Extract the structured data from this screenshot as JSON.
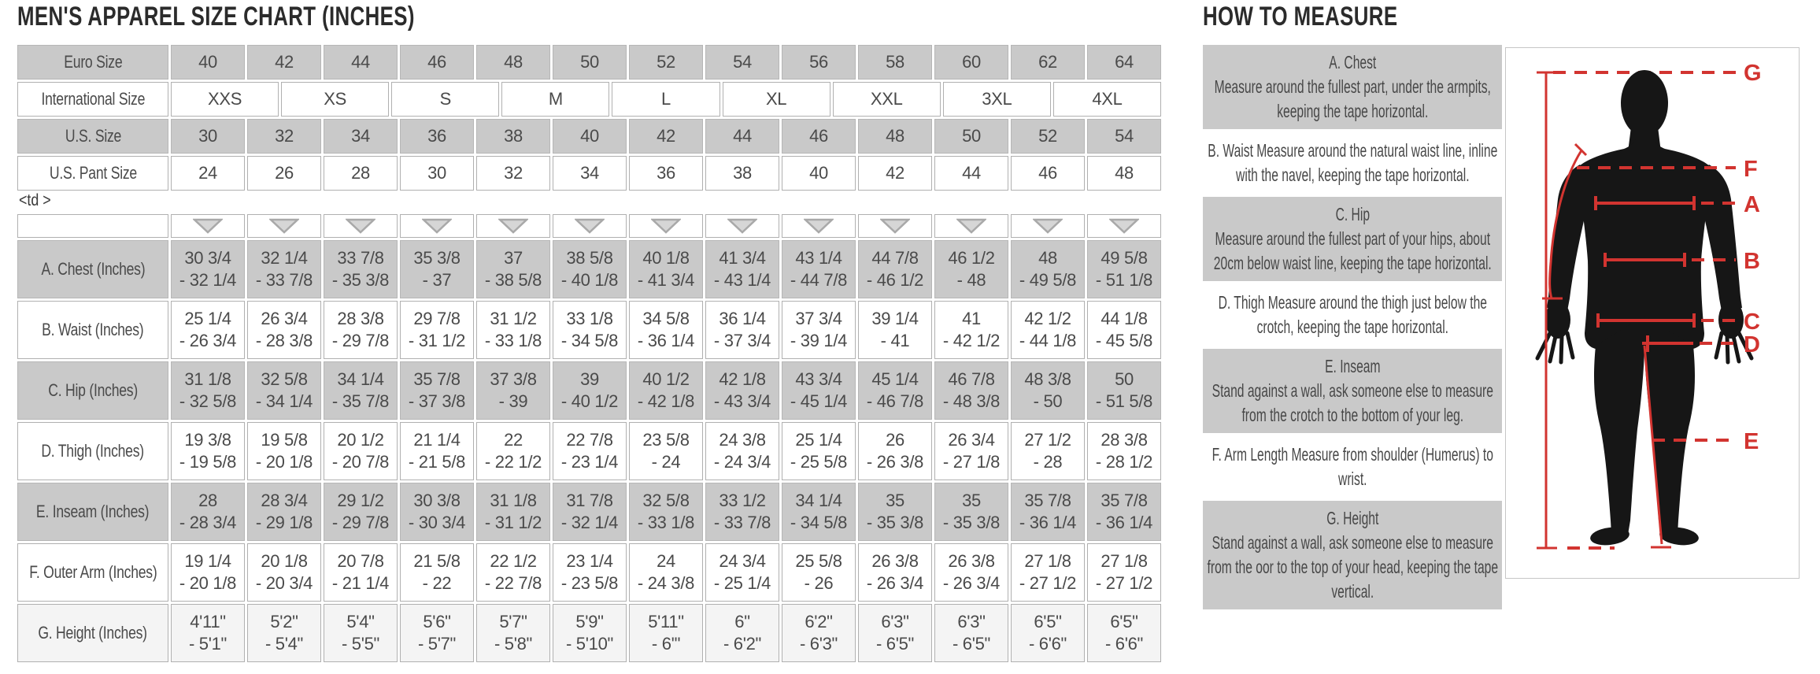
{
  "left": {
    "title": "MEN'S APPAREL SIZE CHART (INCHES)",
    "stray_text": "<td >",
    "size_table": {
      "rows": [
        {
          "label": "Euro Size",
          "shade": "gray",
          "cells": [
            "40",
            "42",
            "44",
            "46",
            "48",
            "50",
            "52",
            "54",
            "56",
            "58",
            "60",
            "62",
            "64"
          ]
        },
        {
          "label": "International Size",
          "shade": "white",
          "cells": [
            "XXS",
            "XS",
            "S",
            "M",
            "L",
            "XL",
            "XXL",
            "3XL",
            "4XL"
          ]
        },
        {
          "label": "U.S. Size",
          "shade": "gray",
          "cells": [
            "30",
            "32",
            "34",
            "36",
            "38",
            "40",
            "42",
            "44",
            "46",
            "48",
            "50",
            "52",
            "54"
          ]
        },
        {
          "label": "U.S. Pant Size",
          "shade": "white",
          "cells": [
            "24",
            "26",
            "28",
            "30",
            "32",
            "34",
            "36",
            "38",
            "40",
            "42",
            "44",
            "46",
            "48"
          ]
        }
      ]
    },
    "measure_table": {
      "triangle_count": 13,
      "rows": [
        {
          "label": "A. Chest (Inches)",
          "shade": "gray",
          "cells": [
            [
              "30 3/4",
              "- 32 1/4"
            ],
            [
              "32 1/4",
              "- 33 7/8"
            ],
            [
              "33 7/8",
              "- 35 3/8"
            ],
            [
              "35 3/8",
              "- 37"
            ],
            [
              "37",
              "- 38 5/8"
            ],
            [
              "38 5/8",
              "- 40 1/8"
            ],
            [
              "40 1/8",
              "- 41 3/4"
            ],
            [
              "41 3/4",
              "- 43 1/4"
            ],
            [
              "43 1/4",
              "- 44 7/8"
            ],
            [
              "44 7/8",
              "- 46 1/2"
            ],
            [
              "46 1/2",
              "- 48"
            ],
            [
              "48",
              "- 49 5/8"
            ],
            [
              "49 5/8",
              "- 51 1/8"
            ]
          ]
        },
        {
          "label": "B. Waist (Inches)",
          "shade": "white",
          "cells": [
            [
              "25 1/4",
              "- 26 3/4"
            ],
            [
              "26 3/4",
              "- 28 3/8"
            ],
            [
              "28 3/8",
              "- 29 7/8"
            ],
            [
              "29 7/8",
              "- 31 1/2"
            ],
            [
              "31 1/2",
              "- 33 1/8"
            ],
            [
              "33 1/8",
              "- 34 5/8"
            ],
            [
              "34 5/8",
              "- 36 1/4"
            ],
            [
              "36 1/4",
              "- 37 3/4"
            ],
            [
              "37 3/4",
              "- 39 1/4"
            ],
            [
              "39 1/4",
              "- 41"
            ],
            [
              "41",
              "- 42 1/2"
            ],
            [
              "42 1/2",
              "- 44 1/8"
            ],
            [
              "44 1/8",
              "- 45 5/8"
            ]
          ]
        },
        {
          "label": "C. Hip (Inches)",
          "shade": "gray",
          "cells": [
            [
              "31 1/8",
              "- 32 5/8"
            ],
            [
              "32 5/8",
              "- 34 1/4"
            ],
            [
              "34 1/4",
              "- 35 7/8"
            ],
            [
              "35 7/8",
              "- 37 3/8"
            ],
            [
              "37 3/8",
              "- 39"
            ],
            [
              "39",
              "- 40 1/2"
            ],
            [
              "40 1/2",
              "- 42 1/8"
            ],
            [
              "42 1/8",
              "- 43 3/4"
            ],
            [
              "43 3/4",
              "- 45 1/4"
            ],
            [
              "45 1/4",
              "- 46 7/8"
            ],
            [
              "46 7/8",
              "- 48 3/8"
            ],
            [
              "48 3/8",
              "- 50"
            ],
            [
              "50",
              "- 51 5/8"
            ]
          ]
        },
        {
          "label": "D. Thigh (Inches)",
          "shade": "white",
          "cells": [
            [
              "19 3/8",
              "- 19 5/8"
            ],
            [
              "19 5/8",
              "- 20 1/8"
            ],
            [
              "20 1/2",
              "- 20 7/8"
            ],
            [
              "21 1/4",
              "- 21 5/8"
            ],
            [
              "22",
              "- 22 1/2"
            ],
            [
              "22 7/8",
              "- 23 1/4"
            ],
            [
              "23 5/8",
              "- 24"
            ],
            [
              "24 3/8",
              "- 24 3/4"
            ],
            [
              "25 1/4",
              "- 25 5/8"
            ],
            [
              "26",
              "- 26 3/8"
            ],
            [
              "26 3/4",
              "- 27 1/8"
            ],
            [
              "27 1/2",
              "- 28"
            ],
            [
              "28 3/8",
              "- 28 1/2"
            ]
          ]
        },
        {
          "label": "E. Inseam (Inches)",
          "shade": "gray",
          "cells": [
            [
              "28",
              "- 28 3/4"
            ],
            [
              "28 3/4",
              "- 29 1/8"
            ],
            [
              "29 1/2",
              "- 29 7/8"
            ],
            [
              "30 3/8",
              "- 30 3/4"
            ],
            [
              "31 1/8",
              "- 31 1/2"
            ],
            [
              "31 7/8",
              "- 32 1/4"
            ],
            [
              "32 5/8",
              "- 33 1/8"
            ],
            [
              "33 1/2",
              "- 33 7/8"
            ],
            [
              "34 1/4",
              "- 34 5/8"
            ],
            [
              "35",
              "- 35 3/8"
            ],
            [
              "35",
              "- 35 3/8"
            ],
            [
              "35 7/8",
              "- 36 1/4"
            ],
            [
              "35 7/8",
              "- 36 1/4"
            ]
          ]
        },
        {
          "label": "F. Outer Arm (Inches)",
          "shade": "white",
          "cells": [
            [
              "19 1/4",
              "- 20 1/8"
            ],
            [
              "20 1/8",
              "- 20 3/4"
            ],
            [
              "20 7/8",
              "- 21 1/4"
            ],
            [
              "21 5/8",
              "- 22"
            ],
            [
              "22 1/2",
              "- 22 7/8"
            ],
            [
              "23 1/4",
              "- 23 5/8"
            ],
            [
              "24",
              "- 24 3/8"
            ],
            [
              "24 3/4",
              "- 25 1/4"
            ],
            [
              "25 5/8",
              "- 26"
            ],
            [
              "26 3/8",
              "- 26 3/4"
            ],
            [
              "26 3/8",
              "- 26 3/4"
            ],
            [
              "27 1/8",
              "- 27 1/2"
            ],
            [
              "27 1/8",
              "- 27 1/2"
            ]
          ]
        },
        {
          "label": "G. Height (Inches)",
          "shade": "light",
          "cells": [
            [
              "4'11\"",
              "- 5'1\""
            ],
            [
              "5'2\"",
              "- 5'4\""
            ],
            [
              "5'4\"",
              "- 5'5\""
            ],
            [
              "5'6\"",
              "- 5'7\""
            ],
            [
              "5'7\"",
              "- 5'8\""
            ],
            [
              "5'9\"",
              "- 5'10\""
            ],
            [
              "5'11\"",
              "- 6'\""
            ],
            [
              "6\"",
              "- 6'2\""
            ],
            [
              "6'2\"",
              "- 6'3\""
            ],
            [
              "6'3\"",
              "- 6'5\""
            ],
            [
              "6'3\"",
              "- 6'5\""
            ],
            [
              "6'5\"",
              "- 6'6\""
            ],
            [
              "6'5\"",
              "- 6'6\""
            ]
          ]
        }
      ]
    }
  },
  "right": {
    "title": "HOW TO MEASURE",
    "instructions": [
      {
        "heading": "A. Chest",
        "shade": "gray",
        "text": "Measure around the fullest part, under the armpits, keeping the tape horizontal."
      },
      {
        "heading": "",
        "shade": "white",
        "text": "B. Waist Measure around the natural waist line, inline with the navel, keeping the tape horizontal."
      },
      {
        "heading": "C. Hip",
        "shade": "gray",
        "text": "Measure around the fullest part of your hips, about 20cm below waist line, keeping the tape horizontal."
      },
      {
        "heading": "",
        "shade": "white",
        "text": "D. Thigh Measure around the thigh just below the crotch, keeping the tape horizontal."
      },
      {
        "heading": "E. Inseam",
        "shade": "gray",
        "text": "Stand against a wall, ask someone else to measure from the crotch to the bottom of your leg."
      },
      {
        "heading": "",
        "shade": "white",
        "text": "F. Arm Length Measure from shoulder (Humerus) to wrist."
      },
      {
        "heading": "G. Height",
        "shade": "gray",
        "text": "Stand against a wall, ask someone else to measure from the oor to the top of your head, keeping the tape vertical."
      }
    ],
    "diagram_labels": [
      "G",
      "F",
      "A",
      "B",
      "C",
      "D",
      "E"
    ]
  },
  "colors": {
    "accent_red": "#d23430",
    "row_gray": "#c9c9c9",
    "row_light": "#f4f4f4",
    "cell_border": "#b0b0b0",
    "text": "#4a4a4a",
    "title_text": "#2b2b2b",
    "silhouette": "#161616"
  }
}
